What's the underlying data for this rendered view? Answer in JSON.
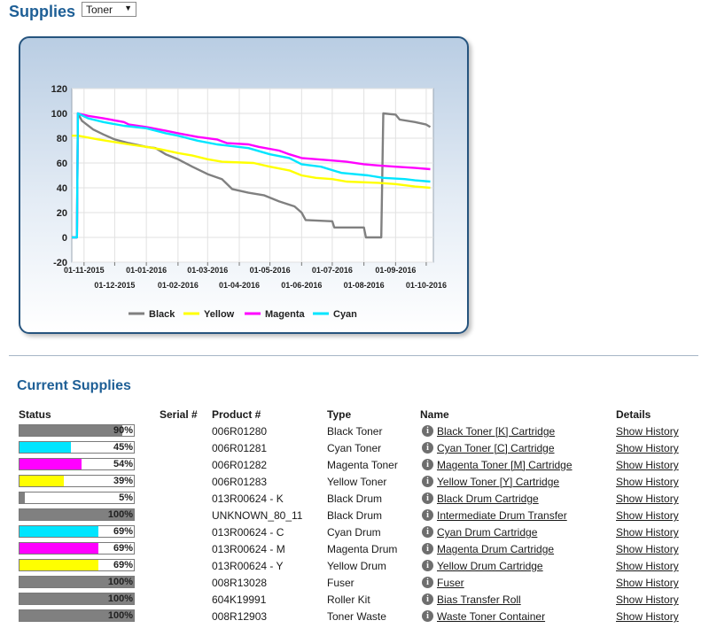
{
  "header": {
    "title": "Supplies",
    "supply_select": "Toner"
  },
  "colors": {
    "Black": "#808080",
    "Yellow": "#ffff00",
    "Magenta": "#ff00ff",
    "Cyan": "#00e5ff"
  },
  "chart_data": {
    "type": "line",
    "ylim": [
      -20,
      120
    ],
    "yticks": [
      "120",
      "100",
      "80",
      "60",
      "40",
      "20",
      "0",
      "-20"
    ],
    "xticks_upper": [
      "01-11-2015",
      "01-01-2016",
      "01-03-2016",
      "01-05-2016",
      "01-07-2016",
      "01-09-2016"
    ],
    "xticks_lower": [
      "01-12-2015",
      "01-02-2016",
      "01-04-2016",
      "01-06-2016",
      "01-08-2016",
      "01-10-2016"
    ],
    "legend_position": "bottom",
    "series": [
      {
        "name": "Black",
        "color": "#808080",
        "points": [
          [
            "2015-10-20",
            0
          ],
          [
            "2015-10-25",
            0
          ],
          [
            "2015-10-26",
            100
          ],
          [
            "2015-10-30",
            94
          ],
          [
            "2015-11-10",
            87
          ],
          [
            "2015-11-20",
            83
          ],
          [
            "2015-12-01",
            79
          ],
          [
            "2015-12-15",
            76
          ],
          [
            "2016-01-01",
            73
          ],
          [
            "2016-01-10",
            72
          ],
          [
            "2016-01-20",
            67
          ],
          [
            "2016-02-01",
            63
          ],
          [
            "2016-02-15",
            57
          ],
          [
            "2016-03-01",
            51
          ],
          [
            "2016-03-15",
            47
          ],
          [
            "2016-03-25",
            39
          ],
          [
            "2016-04-10",
            36
          ],
          [
            "2016-04-25",
            34
          ],
          [
            "2016-05-10",
            29
          ],
          [
            "2016-05-25",
            25
          ],
          [
            "2016-06-01",
            20
          ],
          [
            "2016-06-05",
            14
          ],
          [
            "2016-07-01",
            13
          ],
          [
            "2016-07-03",
            8
          ],
          [
            "2016-08-01",
            8
          ],
          [
            "2016-08-03",
            0
          ],
          [
            "2016-08-18",
            0
          ],
          [
            "2016-08-20",
            100
          ],
          [
            "2016-09-01",
            99
          ],
          [
            "2016-09-05",
            95
          ],
          [
            "2016-09-20",
            93
          ],
          [
            "2016-10-01",
            91
          ],
          [
            "2016-10-05",
            89
          ]
        ]
      },
      {
        "name": "Yellow",
        "color": "#ffff00",
        "points": [
          [
            "2015-10-20",
            82
          ],
          [
            "2015-10-26",
            82
          ],
          [
            "2015-11-15",
            79
          ],
          [
            "2015-12-15",
            75
          ],
          [
            "2016-01-01",
            73
          ],
          [
            "2016-01-15",
            71
          ],
          [
            "2016-02-01",
            68
          ],
          [
            "2016-02-15",
            66
          ],
          [
            "2016-03-01",
            63
          ],
          [
            "2016-03-15",
            61
          ],
          [
            "2016-04-15",
            60
          ],
          [
            "2016-05-01",
            57
          ],
          [
            "2016-05-20",
            54
          ],
          [
            "2016-06-01",
            50
          ],
          [
            "2016-06-15",
            48
          ],
          [
            "2016-07-01",
            47
          ],
          [
            "2016-07-15",
            45
          ],
          [
            "2016-08-15",
            44
          ],
          [
            "2016-09-01",
            43
          ],
          [
            "2016-09-20",
            41
          ],
          [
            "2016-10-05",
            40
          ]
        ]
      },
      {
        "name": "Magenta",
        "color": "#ff00ff",
        "points": [
          [
            "2015-10-20",
            0
          ],
          [
            "2015-10-25",
            0
          ],
          [
            "2015-10-26",
            100
          ],
          [
            "2015-11-05",
            98
          ],
          [
            "2015-11-20",
            96
          ],
          [
            "2015-12-10",
            93
          ],
          [
            "2015-12-15",
            91
          ],
          [
            "2016-01-01",
            89
          ],
          [
            "2016-01-20",
            86
          ],
          [
            "2016-02-01",
            84
          ],
          [
            "2016-02-20",
            81
          ],
          [
            "2016-03-10",
            79
          ],
          [
            "2016-03-20",
            76
          ],
          [
            "2016-04-10",
            75
          ],
          [
            "2016-04-20",
            73
          ],
          [
            "2016-05-10",
            70
          ],
          [
            "2016-05-20",
            67
          ],
          [
            "2016-06-01",
            64
          ],
          [
            "2016-07-01",
            62
          ],
          [
            "2016-07-15",
            61
          ],
          [
            "2016-08-01",
            59
          ],
          [
            "2016-08-15",
            58
          ],
          [
            "2016-09-01",
            57
          ],
          [
            "2016-09-20",
            56
          ],
          [
            "2016-10-05",
            55
          ]
        ]
      },
      {
        "name": "Cyan",
        "color": "#00e5ff",
        "points": [
          [
            "2015-10-20",
            0
          ],
          [
            "2015-10-25",
            0
          ],
          [
            "2015-10-26",
            100
          ],
          [
            "2015-11-05",
            96
          ],
          [
            "2015-11-20",
            93
          ],
          [
            "2015-12-10",
            90
          ],
          [
            "2016-01-01",
            88
          ],
          [
            "2016-01-20",
            84
          ],
          [
            "2016-02-01",
            82
          ],
          [
            "2016-02-20",
            78
          ],
          [
            "2016-03-10",
            75
          ],
          [
            "2016-04-10",
            72
          ],
          [
            "2016-05-01",
            67
          ],
          [
            "2016-05-20",
            64
          ],
          [
            "2016-06-01",
            59
          ],
          [
            "2016-06-20",
            57
          ],
          [
            "2016-07-10",
            52
          ],
          [
            "2016-08-05",
            50
          ],
          [
            "2016-08-20",
            48
          ],
          [
            "2016-09-10",
            47
          ],
          [
            "2016-09-20",
            46
          ],
          [
            "2016-10-05",
            45
          ]
        ]
      }
    ]
  },
  "current_supplies": {
    "title": "Current Supplies",
    "columns": {
      "status": "Status",
      "serial": "Serial #",
      "product": "Product #",
      "type": "Type",
      "name": "Name",
      "details": "Details"
    },
    "rows": [
      {
        "percent": 90,
        "percent_label": "90%",
        "color": "#808080",
        "serial": "",
        "product": "006R01280",
        "type": "Black Toner",
        "name": "Black Toner [K] Cartridge",
        "details": "Show History"
      },
      {
        "percent": 45,
        "percent_label": "45%",
        "color": "#00e5ff",
        "serial": "",
        "product": "006R01281",
        "type": "Cyan Toner",
        "name": "Cyan Toner [C] Cartridge",
        "details": "Show History"
      },
      {
        "percent": 54,
        "percent_label": "54%",
        "color": "#ff00ff",
        "serial": "",
        "product": "006R01282",
        "type": "Magenta Toner",
        "name": "Magenta Toner [M] Cartridge",
        "details": "Show History"
      },
      {
        "percent": 39,
        "percent_label": "39%",
        "color": "#ffff00",
        "serial": "",
        "product": "006R01283",
        "type": "Yellow Toner",
        "name": "Yellow Toner [Y] Cartridge",
        "details": "Show History"
      },
      {
        "percent": 5,
        "percent_label": "5%",
        "color": "#808080",
        "serial": "",
        "product": "013R00624 - K",
        "type": "Black Drum",
        "name": "Black Drum Cartridge",
        "details": "Show History"
      },
      {
        "percent": 100,
        "percent_label": "100%",
        "color": "#808080",
        "serial": "",
        "product": "UNKNOWN_80_11",
        "type": "Black Drum",
        "name": "Intermediate Drum Transfer",
        "details": "Show History"
      },
      {
        "percent": 69,
        "percent_label": "69%",
        "color": "#00e5ff",
        "serial": "",
        "product": "013R00624 - C",
        "type": "Cyan Drum",
        "name": "Cyan Drum Cartridge",
        "details": "Show History"
      },
      {
        "percent": 69,
        "percent_label": "69%",
        "color": "#ff00ff",
        "serial": "",
        "product": "013R00624 - M",
        "type": "Magenta Drum",
        "name": "Magenta Drum Cartridge",
        "details": "Show History"
      },
      {
        "percent": 69,
        "percent_label": "69%",
        "color": "#ffff00",
        "serial": "",
        "product": "013R00624 - Y",
        "type": "Yellow Drum",
        "name": "Yellow Drum Cartridge",
        "details": "Show History"
      },
      {
        "percent": 100,
        "percent_label": "100%",
        "color": "#808080",
        "serial": "",
        "product": "008R13028",
        "type": "Fuser",
        "name": "Fuser",
        "details": "Show History"
      },
      {
        "percent": 100,
        "percent_label": "100%",
        "color": "#808080",
        "serial": "",
        "product": "604K19991",
        "type": "Roller Kit",
        "name": "Bias Transfer Roll",
        "details": "Show History"
      },
      {
        "percent": 100,
        "percent_label": "100%",
        "color": "#808080",
        "serial": "",
        "product": "008R12903",
        "type": "Toner Waste",
        "name": "Waste Toner Container",
        "details": "Show History"
      }
    ]
  }
}
